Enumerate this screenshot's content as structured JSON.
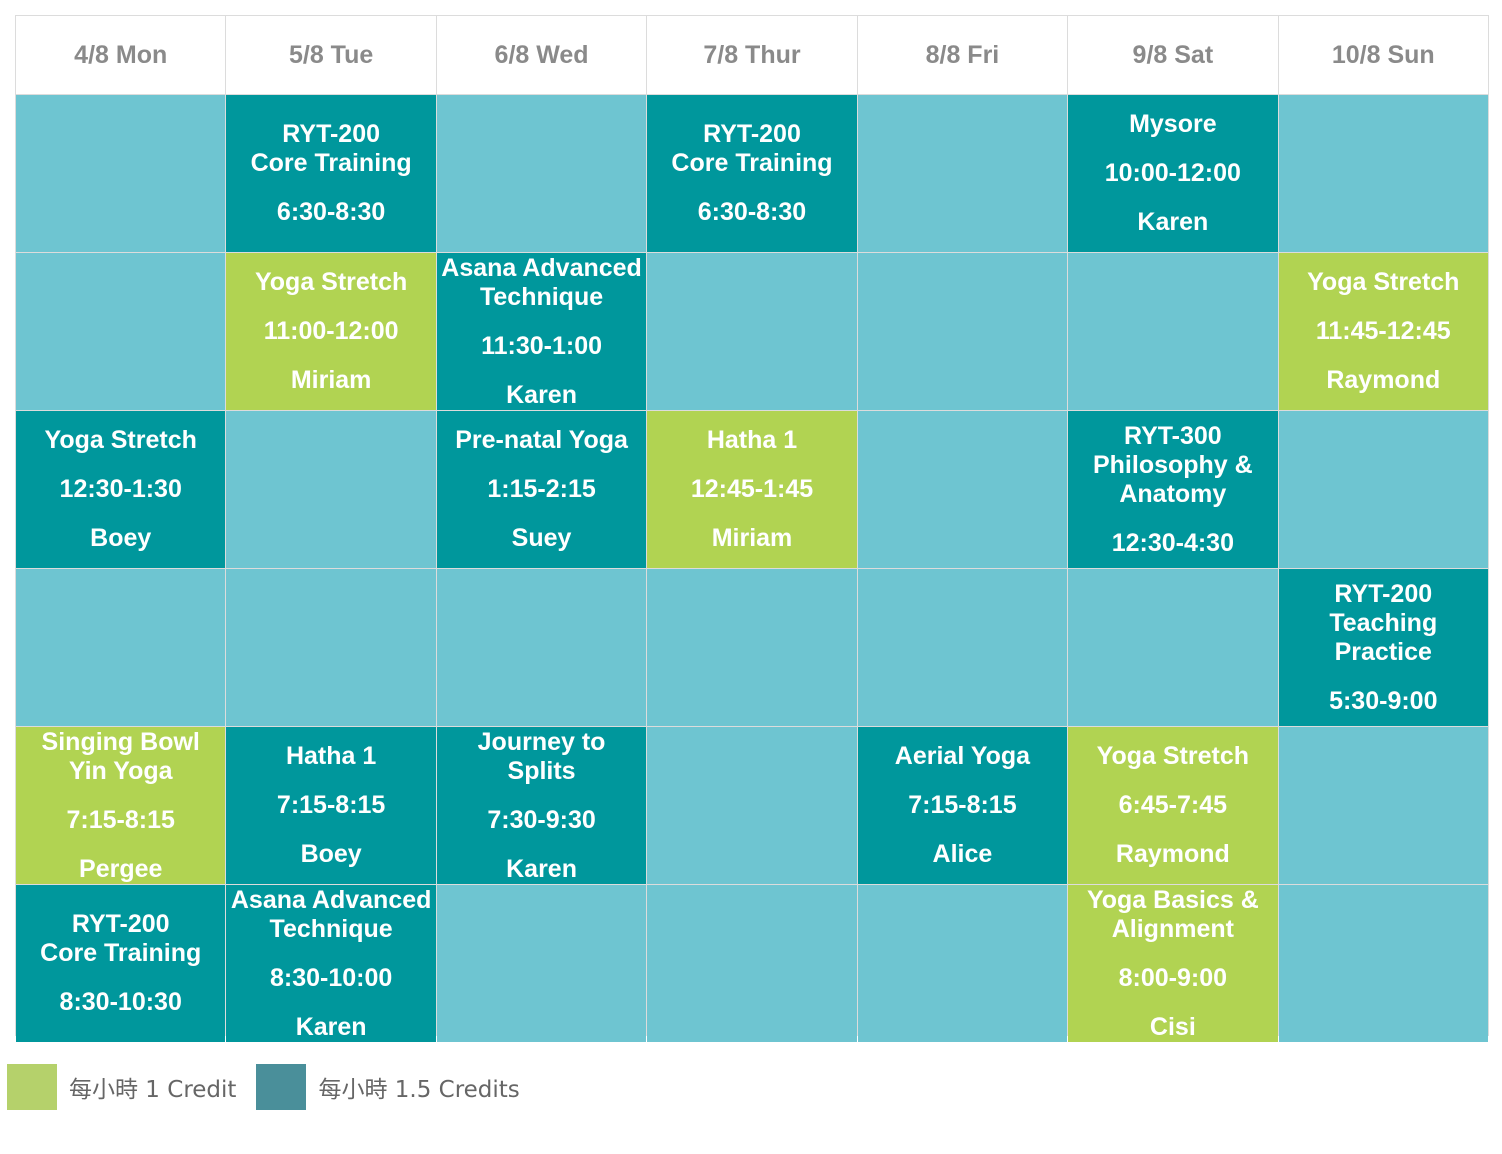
{
  "days": [
    "4/8 Mon",
    "5/8 Tue",
    "6/8 Wed",
    "7/8 Thur",
    "8/8 Fri",
    "9/8 Sat",
    "10/8 Sun"
  ],
  "colors": {
    "empty": "#6ec5d1",
    "teal": "#00979c",
    "green": "#b1d352",
    "legend_green": "#b5d16b",
    "legend_teal": "#4a8f9a"
  },
  "rows": [
    [
      null,
      {
        "name": "RYT-200\nCore Training",
        "time": "6:30-8:30",
        "teacher": "",
        "color": "teal"
      },
      null,
      {
        "name": "RYT-200\nCore Training",
        "time": "6:30-8:30",
        "teacher": "",
        "color": "teal"
      },
      null,
      {
        "name": "Mysore",
        "time": "10:00-12:00",
        "teacher": "Karen",
        "color": "teal"
      },
      null
    ],
    [
      null,
      {
        "name": "Yoga Stretch",
        "time": "11:00-12:00",
        "teacher": "Miriam",
        "color": "green"
      },
      {
        "name": "Asana Advanced\nTechnique",
        "time": "11:30-1:00",
        "teacher": "Karen",
        "color": "teal"
      },
      null,
      null,
      null,
      {
        "name": "Yoga Stretch",
        "time": "11:45-12:45",
        "teacher": "Raymond",
        "color": "green"
      }
    ],
    [
      {
        "name": "Yoga Stretch",
        "time": "12:30-1:30",
        "teacher": "Boey",
        "color": "teal"
      },
      null,
      {
        "name": "Pre-natal Yoga",
        "time": "1:15-2:15",
        "teacher": "Suey",
        "color": "teal"
      },
      {
        "name": "Hatha 1",
        "time": "12:45-1:45",
        "teacher": "Miriam",
        "color": "green"
      },
      null,
      {
        "name": "RYT-300\nPhilosophy &\nAnatomy",
        "time": "12:30-4:30",
        "teacher": "",
        "color": "teal"
      },
      null
    ],
    [
      null,
      null,
      null,
      null,
      null,
      null,
      {
        "name": "RYT-200\nTeaching\nPractice",
        "time": "5:30-9:00",
        "teacher": "",
        "color": "teal"
      }
    ],
    [
      {
        "name": "Singing Bowl\nYin Yoga",
        "time": "7:15-8:15",
        "teacher": "Pergee",
        "color": "green"
      },
      {
        "name": "Hatha 1",
        "time": "7:15-8:15",
        "teacher": "Boey",
        "color": "teal"
      },
      {
        "name": "Journey to\nSplits",
        "time": "7:30-9:30",
        "teacher": "Karen",
        "color": "teal"
      },
      null,
      {
        "name": "Aerial Yoga",
        "time": "7:15-8:15",
        "teacher": "Alice",
        "color": "teal"
      },
      {
        "name": "Yoga Stretch",
        "time": "6:45-7:45",
        "teacher": "Raymond",
        "color": "green"
      },
      null
    ],
    [
      {
        "name": "RYT-200\nCore Training",
        "time": "8:30-10:30",
        "teacher": "",
        "color": "teal"
      },
      {
        "name": "Asana Advanced\nTechnique",
        "time": "8:30-10:00",
        "teacher": "Karen",
        "color": "teal"
      },
      null,
      null,
      null,
      {
        "name": "Yoga Basics &\nAlignment",
        "time": "8:00-9:00",
        "teacher": "Cisi",
        "color": "green"
      },
      null
    ]
  ],
  "legend": [
    {
      "label": "每小時 1 Credit",
      "color": "legend_green"
    },
    {
      "label": "每小時 1.5 Credits",
      "color": "legend_teal"
    }
  ]
}
